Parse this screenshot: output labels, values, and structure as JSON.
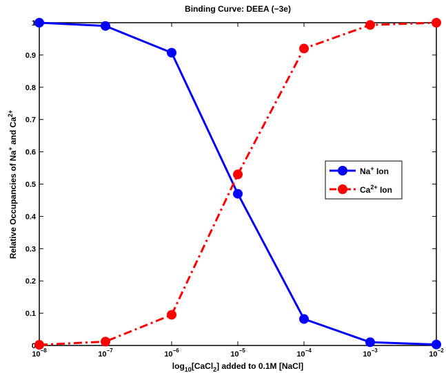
{
  "chart_data": {
    "type": "line",
    "title": "Binding Curve: DEEA (−3e)",
    "xlabel": {
      "pre": "log",
      "sub1": "10",
      "mid": "[CaCl",
      "sub2": "2",
      "post": "] added to 0.1M [NaCl]"
    },
    "ylabel": {
      "pre": "Relative Occupancies of Na",
      "sup1": "+",
      "mid": " and Ca",
      "sup2": "2+"
    },
    "x_scale": "log",
    "x_exponents": [
      -8,
      -7,
      -6,
      -5,
      -4,
      -3,
      -2
    ],
    "xlim_exponents": [
      -8,
      -2
    ],
    "ylim": [
      0,
      1
    ],
    "y_ticks": [
      "0",
      "0.1",
      "0.2",
      "0.3",
      "0.4",
      "0.5",
      "0.6",
      "0.7",
      "0.8",
      "0.9",
      "1"
    ],
    "x_tick_base": "10",
    "series": [
      {
        "name": "Na",
        "name_sup": "+",
        "name_suffix": " Ion",
        "color": "#0000ff",
        "dash": "solid",
        "values": [
          1.0,
          0.99,
          0.907,
          0.47,
          0.082,
          0.01,
          0.003
        ]
      },
      {
        "name": "Ca",
        "name_sup": "2+",
        "name_suffix": " Ion",
        "color": "#ff0000",
        "dash": "dashdot",
        "values": [
          0.002,
          0.012,
          0.095,
          0.53,
          0.92,
          0.993,
          1.0
        ]
      }
    ],
    "legend_position": "center-right",
    "grid": false
  }
}
